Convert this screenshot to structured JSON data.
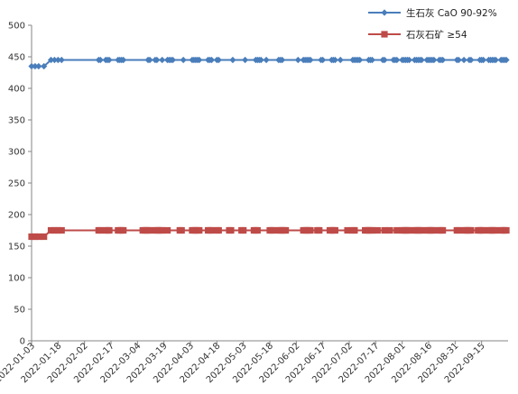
{
  "chart_data": {
    "type": "line",
    "title": "",
    "xlabel": "",
    "ylabel": "",
    "ylim": [
      0,
      500
    ],
    "y_ticks": [
      0,
      50,
      100,
      150,
      200,
      250,
      300,
      350,
      400,
      450,
      500
    ],
    "x_range": [
      "2022-01-03",
      "2022-09-30"
    ],
    "x_ticks": [
      "2022-01-03",
      "2022-01-18",
      "2022-02-02",
      "2022-02-17",
      "2022-03-04",
      "2022-03-19",
      "2022-04-03",
      "2022-04-18",
      "2022-05-03",
      "2022-05-18",
      "2022-06-02",
      "2022-06-17",
      "2022-07-02",
      "2022-07-17",
      "2022-08-01",
      "2022-08-16",
      "2022-08-31",
      "2022-09-15"
    ],
    "grid": false,
    "legend_position": "top-right",
    "series": [
      {
        "name": "生石灰 CaO 90-92%",
        "color": "#4a7ebb",
        "marker": "diamond",
        "points": [
          [
            "2022-01-03",
            435
          ],
          [
            "2022-01-05",
            435
          ],
          [
            "2022-01-07",
            435
          ],
          [
            "2022-01-10",
            435
          ],
          [
            "2022-01-14",
            445
          ],
          [
            "2022-01-16",
            445
          ],
          [
            "2022-01-18",
            445
          ],
          [
            "2022-01-20",
            445
          ],
          [
            "2022-02-10",
            445
          ],
          [
            "2022-02-11",
            445
          ],
          [
            "2022-02-14",
            445
          ],
          [
            "2022-02-15",
            445
          ],
          [
            "2022-02-16",
            445
          ],
          [
            "2022-02-21",
            445
          ],
          [
            "2022-02-22",
            445
          ],
          [
            "2022-02-23",
            445
          ],
          [
            "2022-02-24",
            445
          ],
          [
            "2022-03-10",
            445
          ],
          [
            "2022-03-11",
            445
          ],
          [
            "2022-03-14",
            445
          ],
          [
            "2022-03-15",
            445
          ],
          [
            "2022-03-18",
            445
          ],
          [
            "2022-03-21",
            445
          ],
          [
            "2022-03-22",
            445
          ],
          [
            "2022-03-23",
            445
          ],
          [
            "2022-03-24",
            445
          ],
          [
            "2022-03-30",
            445
          ],
          [
            "2022-04-04",
            445
          ],
          [
            "2022-04-05",
            445
          ],
          [
            "2022-04-06",
            445
          ],
          [
            "2022-04-07",
            445
          ],
          [
            "2022-04-08",
            445
          ],
          [
            "2022-04-13",
            445
          ],
          [
            "2022-04-14",
            445
          ],
          [
            "2022-04-15",
            445
          ],
          [
            "2022-04-18",
            445
          ],
          [
            "2022-04-19",
            445
          ],
          [
            "2022-04-27",
            445
          ],
          [
            "2022-05-04",
            445
          ],
          [
            "2022-05-10",
            445
          ],
          [
            "2022-05-11",
            445
          ],
          [
            "2022-05-12",
            445
          ],
          [
            "2022-05-13",
            445
          ],
          [
            "2022-05-16",
            445
          ],
          [
            "2022-05-23",
            445
          ],
          [
            "2022-05-24",
            445
          ],
          [
            "2022-05-25",
            445
          ],
          [
            "2022-06-03",
            445
          ],
          [
            "2022-06-06",
            445
          ],
          [
            "2022-06-07",
            445
          ],
          [
            "2022-06-08",
            445
          ],
          [
            "2022-06-09",
            445
          ],
          [
            "2022-06-10",
            445
          ],
          [
            "2022-06-16",
            445
          ],
          [
            "2022-06-17",
            445
          ],
          [
            "2022-06-22",
            445
          ],
          [
            "2022-06-23",
            445
          ],
          [
            "2022-06-24",
            445
          ],
          [
            "2022-06-27",
            445
          ],
          [
            "2022-07-04",
            445
          ],
          [
            "2022-07-05",
            445
          ],
          [
            "2022-07-06",
            445
          ],
          [
            "2022-07-07",
            445
          ],
          [
            "2022-07-08",
            445
          ],
          [
            "2022-07-13",
            445
          ],
          [
            "2022-07-14",
            445
          ],
          [
            "2022-07-15",
            445
          ],
          [
            "2022-07-21",
            445
          ],
          [
            "2022-07-22",
            445
          ],
          [
            "2022-07-27",
            445
          ],
          [
            "2022-07-28",
            445
          ],
          [
            "2022-07-29",
            445
          ],
          [
            "2022-08-01",
            445
          ],
          [
            "2022-08-02",
            445
          ],
          [
            "2022-08-03",
            445
          ],
          [
            "2022-08-04",
            445
          ],
          [
            "2022-08-05",
            445
          ],
          [
            "2022-08-08",
            445
          ],
          [
            "2022-08-09",
            445
          ],
          [
            "2022-08-10",
            445
          ],
          [
            "2022-08-11",
            445
          ],
          [
            "2022-08-12",
            445
          ],
          [
            "2022-08-15",
            445
          ],
          [
            "2022-08-16",
            445
          ],
          [
            "2022-08-17",
            445
          ],
          [
            "2022-08-18",
            445
          ],
          [
            "2022-08-19",
            445
          ],
          [
            "2022-08-22",
            445
          ],
          [
            "2022-08-23",
            445
          ],
          [
            "2022-08-24",
            445
          ],
          [
            "2022-09-01",
            445
          ],
          [
            "2022-09-02",
            445
          ],
          [
            "2022-09-05",
            445
          ],
          [
            "2022-09-08",
            445
          ],
          [
            "2022-09-09",
            445
          ],
          [
            "2022-09-14",
            445
          ],
          [
            "2022-09-15",
            445
          ],
          [
            "2022-09-16",
            445
          ],
          [
            "2022-09-19",
            445
          ],
          [
            "2022-09-20",
            445
          ],
          [
            "2022-09-21",
            445
          ],
          [
            "2022-09-22",
            445
          ],
          [
            "2022-09-23",
            445
          ],
          [
            "2022-09-26",
            445
          ],
          [
            "2022-09-27",
            445
          ],
          [
            "2022-09-28",
            445
          ],
          [
            "2022-09-29",
            445
          ]
        ]
      },
      {
        "name": "石灰石矿 ≥54",
        "color": "#be4b48",
        "marker": "square",
        "points": [
          [
            "2022-01-03",
            165
          ],
          [
            "2022-01-05",
            165
          ],
          [
            "2022-01-07",
            165
          ],
          [
            "2022-01-10",
            165
          ],
          [
            "2022-01-14",
            175
          ],
          [
            "2022-01-16",
            175
          ],
          [
            "2022-01-18",
            175
          ],
          [
            "2022-01-20",
            175
          ],
          [
            "2022-02-10",
            175
          ],
          [
            "2022-02-11",
            175
          ],
          [
            "2022-02-14",
            175
          ],
          [
            "2022-02-15",
            175
          ],
          [
            "2022-02-16",
            175
          ],
          [
            "2022-02-21",
            175
          ],
          [
            "2022-02-22",
            175
          ],
          [
            "2022-02-23",
            175
          ],
          [
            "2022-02-24",
            175
          ],
          [
            "2022-03-07",
            175
          ],
          [
            "2022-03-08",
            175
          ],
          [
            "2022-03-09",
            175
          ],
          [
            "2022-03-10",
            175
          ],
          [
            "2022-03-11",
            175
          ],
          [
            "2022-03-14",
            175
          ],
          [
            "2022-03-15",
            175
          ],
          [
            "2022-03-16",
            175
          ],
          [
            "2022-03-17",
            175
          ],
          [
            "2022-03-18",
            175
          ],
          [
            "2022-03-21",
            175
          ],
          [
            "2022-03-28",
            175
          ],
          [
            "2022-03-29",
            175
          ],
          [
            "2022-04-04",
            175
          ],
          [
            "2022-04-05",
            175
          ],
          [
            "2022-04-06",
            175
          ],
          [
            "2022-04-07",
            175
          ],
          [
            "2022-04-08",
            175
          ],
          [
            "2022-04-13",
            175
          ],
          [
            "2022-04-14",
            175
          ],
          [
            "2022-04-15",
            175
          ],
          [
            "2022-04-18",
            175
          ],
          [
            "2022-04-19",
            175
          ],
          [
            "2022-04-25",
            175
          ],
          [
            "2022-04-26",
            175
          ],
          [
            "2022-05-02",
            175
          ],
          [
            "2022-05-03",
            175
          ],
          [
            "2022-05-09",
            175
          ],
          [
            "2022-05-10",
            175
          ],
          [
            "2022-05-11",
            175
          ],
          [
            "2022-05-18",
            175
          ],
          [
            "2022-05-19",
            175
          ],
          [
            "2022-05-20",
            175
          ],
          [
            "2022-05-23",
            175
          ],
          [
            "2022-05-24",
            175
          ],
          [
            "2022-05-25",
            175
          ],
          [
            "2022-05-26",
            175
          ],
          [
            "2022-05-27",
            175
          ],
          [
            "2022-06-06",
            175
          ],
          [
            "2022-06-07",
            175
          ],
          [
            "2022-06-08",
            175
          ],
          [
            "2022-06-09",
            175
          ],
          [
            "2022-06-10",
            175
          ],
          [
            "2022-06-14",
            175
          ],
          [
            "2022-06-15",
            175
          ],
          [
            "2022-06-21",
            175
          ],
          [
            "2022-06-22",
            175
          ],
          [
            "2022-06-23",
            175
          ],
          [
            "2022-06-24",
            175
          ],
          [
            "2022-07-01",
            175
          ],
          [
            "2022-07-04",
            175
          ],
          [
            "2022-07-05",
            175
          ],
          [
            "2022-07-11",
            175
          ],
          [
            "2022-07-12",
            175
          ],
          [
            "2022-07-13",
            175
          ],
          [
            "2022-07-14",
            175
          ],
          [
            "2022-07-15",
            175
          ],
          [
            "2022-07-18",
            175
          ],
          [
            "2022-07-22",
            175
          ],
          [
            "2022-07-25",
            175
          ],
          [
            "2022-07-29",
            175
          ],
          [
            "2022-08-01",
            175
          ],
          [
            "2022-08-02",
            175
          ],
          [
            "2022-08-03",
            175
          ],
          [
            "2022-08-04",
            175
          ],
          [
            "2022-08-05",
            175
          ],
          [
            "2022-08-08",
            175
          ],
          [
            "2022-08-09",
            175
          ],
          [
            "2022-08-10",
            175
          ],
          [
            "2022-08-11",
            175
          ],
          [
            "2022-08-12",
            175
          ],
          [
            "2022-08-15",
            175
          ],
          [
            "2022-08-16",
            175
          ],
          [
            "2022-08-17",
            175
          ],
          [
            "2022-08-18",
            175
          ],
          [
            "2022-08-19",
            175
          ],
          [
            "2022-08-22",
            175
          ],
          [
            "2022-08-23",
            175
          ],
          [
            "2022-08-24",
            175
          ],
          [
            "2022-09-01",
            175
          ],
          [
            "2022-09-02",
            175
          ],
          [
            "2022-09-05",
            175
          ],
          [
            "2022-09-06",
            175
          ],
          [
            "2022-09-07",
            175
          ],
          [
            "2022-09-08",
            175
          ],
          [
            "2022-09-09",
            175
          ],
          [
            "2022-09-13",
            175
          ],
          [
            "2022-09-14",
            175
          ],
          [
            "2022-09-15",
            175
          ],
          [
            "2022-09-16",
            175
          ],
          [
            "2022-09-19",
            175
          ],
          [
            "2022-09-20",
            175
          ],
          [
            "2022-09-21",
            175
          ],
          [
            "2022-09-22",
            175
          ],
          [
            "2022-09-23",
            175
          ],
          [
            "2022-09-26",
            175
          ],
          [
            "2022-09-27",
            175
          ],
          [
            "2022-09-28",
            175
          ],
          [
            "2022-09-29",
            175
          ]
        ]
      }
    ]
  }
}
